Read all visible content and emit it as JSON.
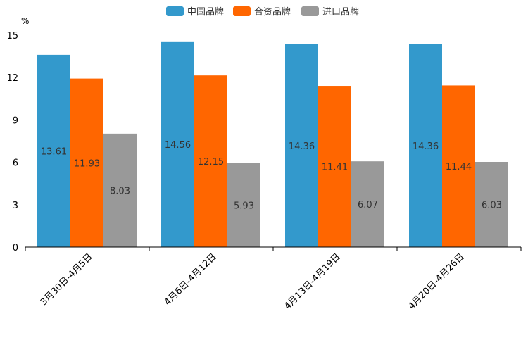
{
  "chart_data": {
    "type": "bar",
    "unit": "%",
    "categories": [
      "3月30日-4月5日",
      "4月6日-4月12日",
      "4月13日-4月19日",
      "4月20日-4月26日"
    ],
    "series": [
      {
        "name": "中国品牌",
        "color": "#3399cc",
        "values": [
          13.61,
          14.56,
          14.36,
          14.36
        ]
      },
      {
        "name": "合资品牌",
        "color": "#ff6600",
        "values": [
          11.93,
          12.15,
          11.41,
          11.44
        ]
      },
      {
        "name": "进口品牌",
        "color": "#999999",
        "values": [
          8.03,
          5.93,
          6.07,
          6.03
        ]
      }
    ],
    "yticks": [
      0,
      3,
      6,
      9,
      12,
      15
    ],
    "ylim": [
      0,
      15
    ],
    "legend_position": "top-center"
  }
}
